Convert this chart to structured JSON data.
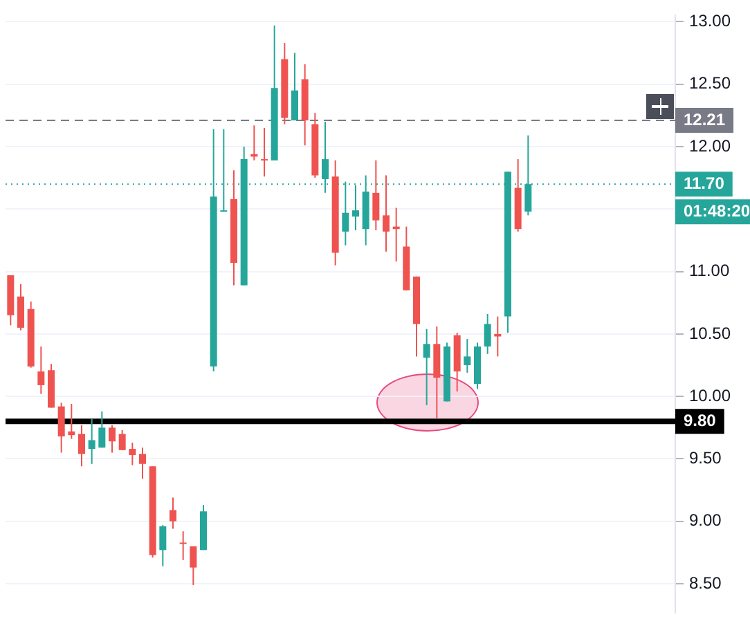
{
  "chart_data": {
    "type": "candlestick",
    "categories": [
      null,
      null,
      null,
      null,
      null,
      null,
      null,
      null,
      null,
      null,
      null,
      null,
      null,
      null,
      null,
      null,
      null,
      null,
      null,
      null,
      null,
      null,
      null,
      null,
      null,
      null,
      null,
      null,
      null,
      null,
      null,
      null,
      null,
      null,
      null,
      null,
      null,
      null,
      null,
      null,
      null,
      null,
      null,
      null,
      null,
      null,
      null,
      null,
      null,
      null,
      null,
      null,
      null,
      null,
      null,
      null,
      null,
      null,
      null,
      null,
      null,
      null,
      null,
      null,
      null,
      null
    ],
    "ohlc": [
      [
        10.97,
        10.97,
        10.57,
        10.65
      ],
      [
        10.8,
        10.9,
        10.53,
        10.55
      ],
      [
        10.7,
        10.76,
        10.23,
        10.24
      ],
      [
        10.2,
        10.4,
        10.02,
        10.09
      ],
      [
        10.21,
        10.26,
        9.91,
        9.91
      ],
      [
        9.92,
        9.95,
        9.55,
        9.68
      ],
      [
        9.72,
        9.94,
        9.66,
        9.69
      ],
      [
        9.7,
        9.77,
        9.44,
        9.54
      ],
      [
        9.58,
        9.82,
        9.46,
        9.65
      ],
      [
        9.59,
        9.88,
        9.59,
        9.75
      ],
      [
        9.75,
        9.77,
        9.55,
        9.64
      ],
      [
        9.7,
        9.73,
        9.57,
        9.57
      ],
      [
        9.58,
        9.63,
        9.45,
        9.53
      ],
      [
        9.54,
        9.59,
        9.34,
        9.46
      ],
      [
        9.44,
        9.44,
        8.71,
        8.73
      ],
      [
        8.77,
        8.97,
        8.64,
        8.96
      ],
      [
        9.09,
        9.19,
        8.94,
        9.0
      ],
      [
        8.83,
        8.92,
        8.69,
        8.82
      ],
      [
        8.8,
        8.8,
        8.49,
        8.63
      ],
      [
        8.77,
        9.13,
        8.77,
        9.08
      ],
      [
        10.24,
        12.14,
        10.2,
        11.6
      ],
      [
        11.48,
        12.14,
        11.48,
        11.49
      ],
      [
        11.58,
        11.81,
        10.89,
        11.07
      ],
      [
        10.89,
        12.0,
        10.89,
        11.9
      ],
      [
        11.94,
        12.17,
        11.89,
        11.92
      ],
      [
        11.9,
        12.15,
        11.76,
        11.89
      ],
      [
        11.89,
        12.97,
        11.89,
        12.47
      ],
      [
        12.7,
        12.83,
        12.18,
        12.23
      ],
      [
        12.21,
        12.75,
        12.21,
        12.45
      ],
      [
        12.54,
        12.66,
        12.01,
        12.21
      ],
      [
        12.18,
        12.27,
        11.75,
        11.77
      ],
      [
        11.74,
        12.2,
        11.63,
        11.9
      ],
      [
        11.76,
        11.89,
        11.05,
        11.15
      ],
      [
        11.32,
        11.72,
        11.21,
        11.47
      ],
      [
        11.44,
        11.69,
        11.33,
        11.49
      ],
      [
        11.34,
        11.77,
        11.21,
        11.64
      ],
      [
        11.63,
        11.89,
        11.33,
        11.41
      ],
      [
        11.45,
        11.77,
        11.16,
        11.32
      ],
      [
        11.36,
        11.51,
        11.08,
        11.34
      ],
      [
        11.2,
        11.36,
        10.85,
        10.85
      ],
      [
        10.96,
        10.96,
        10.32,
        10.58
      ],
      [
        10.31,
        10.54,
        9.93,
        10.42
      ],
      [
        10.42,
        10.56,
        9.82,
        10.15
      ],
      [
        9.96,
        10.43,
        9.96,
        10.4
      ],
      [
        10.49,
        10.51,
        10.04,
        10.2
      ],
      [
        10.25,
        10.46,
        10.19,
        10.32
      ],
      [
        10.1,
        10.43,
        10.06,
        10.4
      ],
      [
        10.4,
        10.66,
        10.34,
        10.58
      ],
      [
        10.5,
        10.64,
        10.32,
        10.48
      ],
      [
        10.64,
        11.8,
        10.51,
        11.8
      ],
      [
        11.67,
        11.9,
        11.32,
        11.34
      ],
      [
        11.48,
        12.09,
        11.45,
        11.7
      ],
      null,
      null,
      null,
      null,
      null,
      null,
      null,
      null,
      null,
      null,
      null,
      null,
      null,
      null
    ],
    "colors": [
      "#ef5350",
      "#ef5350",
      "#ef5350",
      "#ef5350",
      "#ef5350",
      "#ef5350",
      "#ef5350",
      "#ef5350",
      "#26a69a",
      "#26a69a",
      "#ef5350",
      "#ef5350",
      "#ef5350",
      "#ef5350",
      "#ef5350",
      "#26a69a",
      "#ef5350",
      "#ef5350",
      "#ef5350",
      "#26a69a",
      "#26a69a",
      "#26a69a",
      "#ef5350",
      "#26a69a",
      "#ef5350",
      "#ef5350",
      "#26a69a",
      "#ef5350",
      "#26a69a",
      "#ef5350",
      "#ef5350",
      "#26a69a",
      "#ef5350",
      "#26a69a",
      "#26a69a",
      "#26a69a",
      "#ef5350",
      "#ef5350",
      "#ef5350",
      "#ef5350",
      "#ef5350",
      "#26a69a",
      "#ef5350",
      "#26a69a",
      "#ef5350",
      "#26a69a",
      "#26a69a",
      "#26a69a",
      "#ef5350",
      "#26a69a",
      "#ef5350",
      "#26a69a",
      null,
      null,
      null,
      null,
      null,
      null,
      null,
      null,
      null,
      null,
      null,
      null,
      null,
      null
    ],
    "ylim": [
      8.27,
      13.05
    ],
    "yticks": [
      {
        "value": 8.5,
        "label": "8.50"
      },
      {
        "value": 9,
        "label": "9.00"
      },
      {
        "value": 9.5,
        "label": "9.50"
      },
      {
        "value": 10,
        "label": "10.00"
      },
      {
        "value": 10.5,
        "label": "10.50"
      },
      {
        "value": 11,
        "label": "11.00"
      },
      {
        "value": 11.5,
        "label": null
      },
      {
        "value": 12,
        "label": "12.00"
      },
      {
        "value": 12.5,
        "label": "12.50"
      },
      {
        "value": 13,
        "label": "13.00"
      }
    ],
    "tick_labels": "y",
    "grid": "y",
    "legend": false,
    "ref_lines": [
      {
        "axis": "y",
        "value": 12.21,
        "label": "12.21",
        "color": "#787b86",
        "line_style": "dashed"
      },
      {
        "axis": "y",
        "value": 11.7,
        "label": "11.70",
        "color": "#26a69a",
        "line_style": "dotted"
      },
      {
        "axis": "y",
        "value": 9.8,
        "label": "9.80",
        "color": "#000000",
        "line_style": "solid"
      }
    ],
    "annotations": [
      "01:48:20"
    ]
  }
}
